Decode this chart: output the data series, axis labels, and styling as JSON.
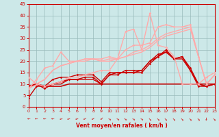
{
  "bg_color": "#cce8e8",
  "grid_color": "#99bbbb",
  "x_min": 0,
  "x_max": 23,
  "y_min": 0,
  "y_max": 45,
  "y_ticks": [
    0,
    5,
    10,
    15,
    20,
    25,
    30,
    35,
    40,
    45
  ],
  "x_ticks": [
    0,
    1,
    2,
    3,
    4,
    5,
    6,
    7,
    8,
    9,
    10,
    11,
    12,
    13,
    14,
    15,
    16,
    17,
    18,
    19,
    20,
    21,
    22,
    23
  ],
  "xlabel": "Vent moyen/en rafales ( km/h )",
  "xlabel_color": "#cc0000",
  "tick_color": "#cc0000",
  "lines": [
    {
      "x": [
        0,
        1,
        2,
        3,
        4,
        5,
        6,
        7,
        8,
        9,
        10,
        11,
        12,
        13,
        14,
        15,
        16,
        17,
        18,
        19,
        20,
        21,
        22,
        23
      ],
      "y": [
        4,
        9,
        9,
        12,
        13,
        13,
        14,
        14,
        14,
        11,
        15,
        15,
        15,
        15,
        15,
        19,
        22,
        25,
        21,
        22,
        16,
        9,
        9,
        10
      ],
      "color": "#cc0000",
      "lw": 1.0,
      "marker": "D",
      "ms": 1.8
    },
    {
      "x": [
        0,
        1,
        2,
        3,
        4,
        5,
        6,
        7,
        8,
        9,
        10,
        11,
        12,
        13,
        14,
        15,
        16,
        17,
        18,
        19,
        20,
        21,
        22,
        23
      ],
      "y": [
        9,
        10,
        8,
        10,
        11,
        12,
        12,
        13,
        13,
        10,
        14,
        14,
        16,
        16,
        16,
        20,
        23,
        24,
        21,
        22,
        17,
        10,
        9,
        10
      ],
      "color": "#cc0000",
      "lw": 1.0,
      "marker": "D",
      "ms": 1.8
    },
    {
      "x": [
        0,
        1,
        2,
        3,
        4,
        5,
        6,
        7,
        8,
        9,
        10,
        11,
        12,
        13,
        14,
        15,
        16,
        17,
        18,
        19,
        20,
        21,
        22,
        23
      ],
      "y": [
        9,
        10,
        9,
        10,
        10,
        12,
        12,
        12,
        12,
        10,
        14,
        15,
        15,
        15,
        16,
        20,
        22,
        24,
        21,
        21,
        16,
        10,
        9,
        10
      ],
      "color": "#cc0000",
      "lw": 1.0,
      "marker": null,
      "ms": 0
    },
    {
      "x": [
        0,
        1,
        2,
        3,
        4,
        5,
        6,
        7,
        8,
        9,
        10,
        11,
        12,
        13,
        14,
        15,
        16,
        17,
        18,
        19,
        20,
        21,
        22,
        23
      ],
      "y": [
        9,
        10,
        9,
        9,
        9,
        10,
        10,
        10,
        10,
        10,
        10,
        10,
        10,
        10,
        10,
        10,
        10,
        10,
        10,
        10,
        10,
        10,
        10,
        10
      ],
      "color": "#cc0000",
      "lw": 1.2,
      "marker": null,
      "ms": 0
    },
    {
      "x": [
        0,
        1,
        2,
        3,
        4,
        5,
        6,
        7,
        8,
        9,
        10,
        11,
        12,
        13,
        14,
        15,
        16,
        17,
        18,
        19,
        20,
        21,
        22,
        23
      ],
      "y": [
        13,
        10,
        9,
        10,
        11,
        13,
        13,
        14,
        15,
        16,
        16,
        21,
        33,
        34,
        25,
        41,
        27,
        26,
        22,
        10,
        10,
        10,
        13,
        15
      ],
      "color": "#ffaaaa",
      "lw": 1.0,
      "marker": "D",
      "ms": 1.8
    },
    {
      "x": [
        0,
        1,
        2,
        3,
        4,
        5,
        6,
        7,
        8,
        9,
        10,
        11,
        12,
        13,
        14,
        15,
        16,
        17,
        18,
        19,
        20,
        21,
        22,
        23
      ],
      "y": [
        8,
        12,
        17,
        18,
        24,
        20,
        20,
        21,
        21,
        21,
        22,
        21,
        25,
        27,
        27,
        28,
        35,
        36,
        35,
        35,
        36,
        22,
        10,
        14
      ],
      "color": "#ffaaaa",
      "lw": 1.0,
      "marker": "D",
      "ms": 1.8
    },
    {
      "x": [
        0,
        1,
        2,
        3,
        4,
        5,
        6,
        7,
        8,
        9,
        10,
        11,
        12,
        13,
        14,
        15,
        16,
        17,
        18,
        19,
        20,
        21,
        22,
        23
      ],
      "y": [
        8,
        10,
        12,
        16,
        18,
        19,
        20,
        21,
        21,
        20,
        21,
        21,
        22,
        24,
        25,
        27,
        30,
        32,
        33,
        34,
        35,
        22,
        10,
        14
      ],
      "color": "#ffaaaa",
      "lw": 1.0,
      "marker": null,
      "ms": 0
    },
    {
      "x": [
        0,
        1,
        2,
        3,
        4,
        5,
        6,
        7,
        8,
        9,
        10,
        11,
        12,
        13,
        14,
        15,
        16,
        17,
        18,
        19,
        20,
        21,
        22,
        23
      ],
      "y": [
        8,
        10,
        12,
        16,
        18,
        19,
        20,
        20,
        21,
        20,
        20,
        21,
        22,
        23,
        24,
        26,
        29,
        31,
        32,
        33,
        34,
        22,
        10,
        14
      ],
      "color": "#ffaaaa",
      "lw": 1.0,
      "marker": null,
      "ms": 0
    }
  ],
  "arrow_angles": [
    180,
    180,
    180,
    180,
    155,
    155,
    155,
    145,
    145,
    135,
    30,
    30,
    30,
    30,
    30,
    45,
    45,
    45,
    45,
    45,
    45,
    45,
    90,
    45
  ]
}
